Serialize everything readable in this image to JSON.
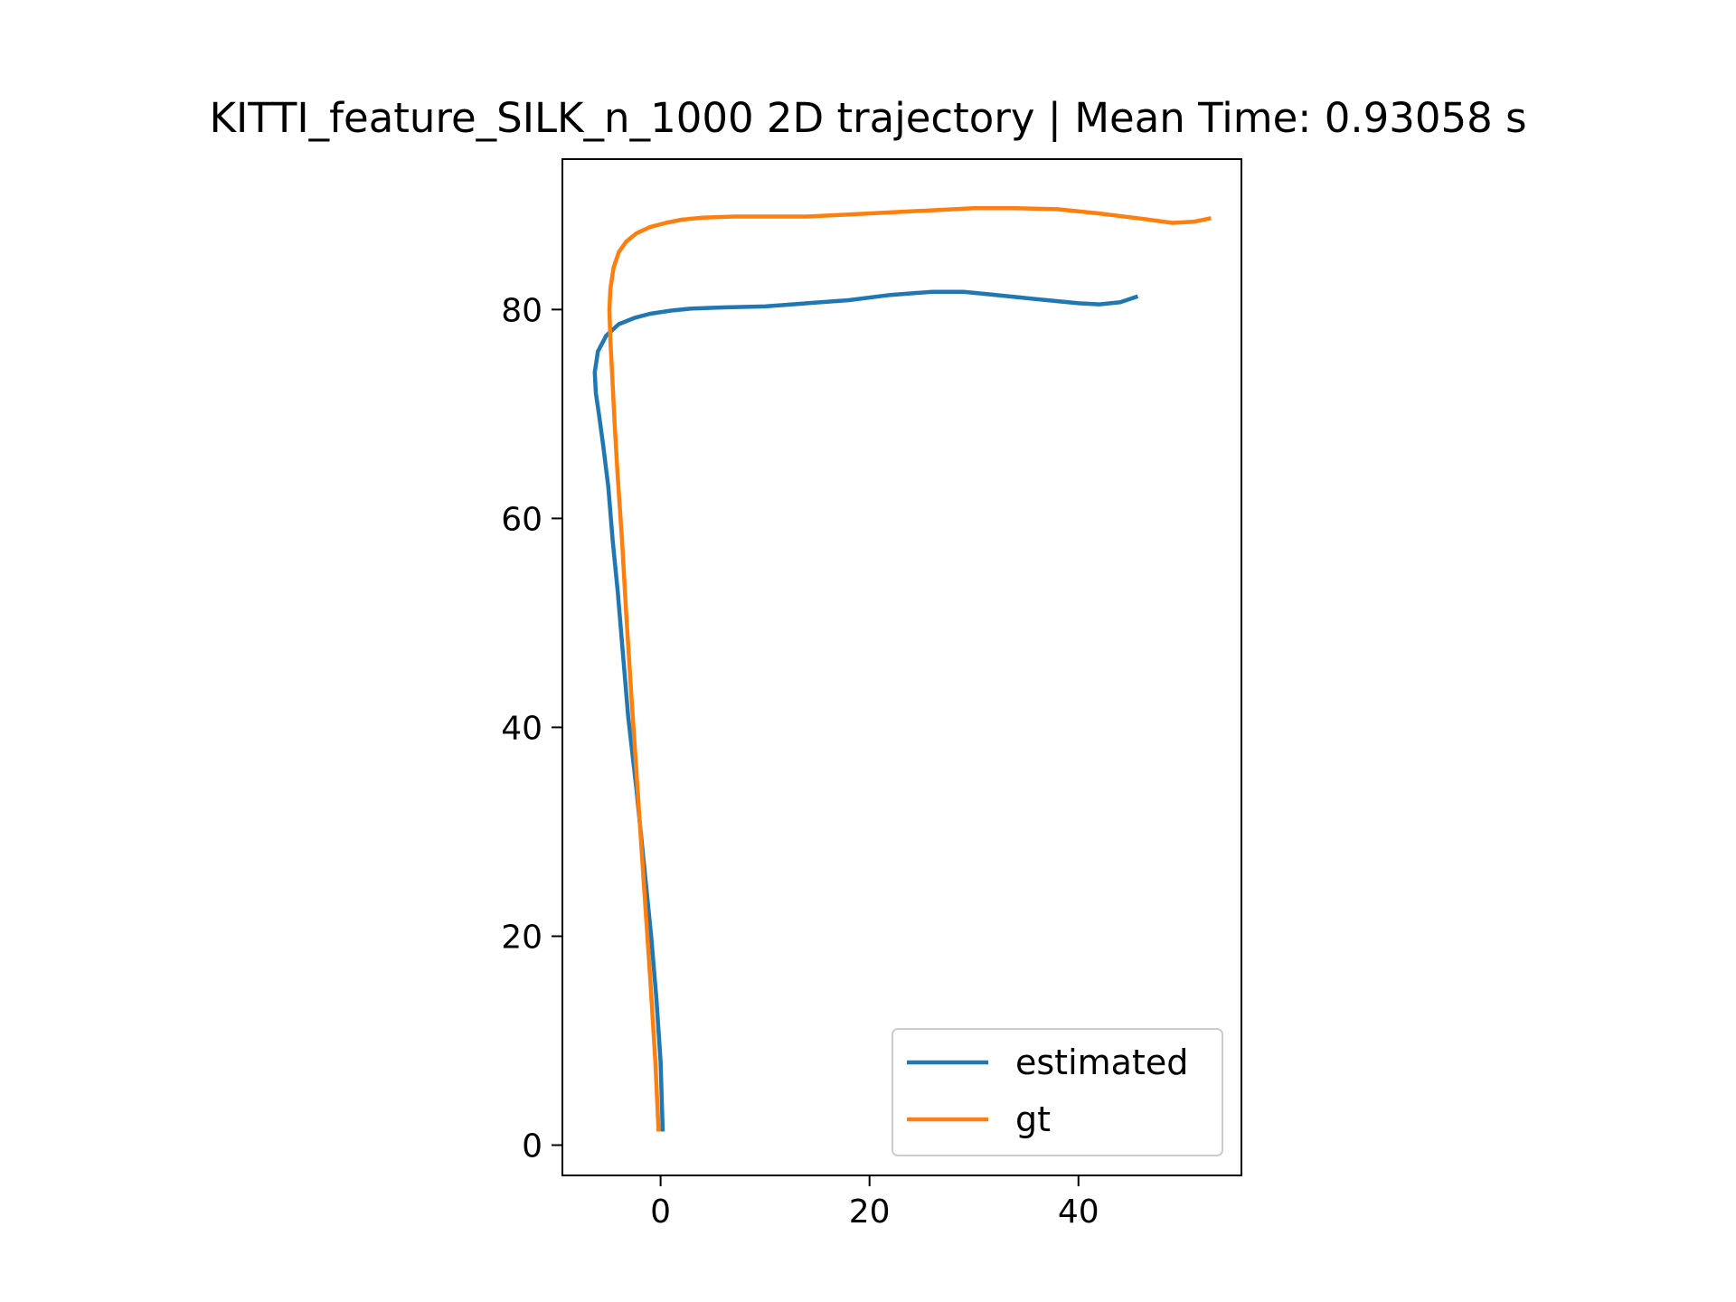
{
  "chart_data": {
    "type": "line",
    "title": "KITTI_feature_SILK_n_1000 2D trajectory | Mean Time: 0.93058 s",
    "xlabel": "",
    "ylabel": "",
    "xlim": [
      -9.4,
      55.6
    ],
    "ylim": [
      -2.9,
      94.4
    ],
    "xticks": [
      0,
      20,
      40
    ],
    "yticks": [
      0,
      20,
      40,
      60,
      80
    ],
    "grid": false,
    "legend_position": "lower right",
    "series": [
      {
        "name": "estimated",
        "color": "#1f77b4",
        "x": [
          0.2,
          0.0,
          -0.4,
          -0.9,
          -1.6,
          -2.3,
          -3.1,
          -3.6,
          -4.1,
          -4.6,
          -5.0,
          -5.5,
          -5.9,
          -6.2,
          -6.3,
          -6.0,
          -5.2,
          -4.0,
          -2.5,
          -1.0,
          1.0,
          3.0,
          6.0,
          10.0,
          14.0,
          18.0,
          22.0,
          26.0,
          29.0,
          31.0,
          34.0,
          37.0,
          40.0,
          42.0,
          44.0,
          45.5
        ],
        "y": [
          1.5,
          8.0,
          14.0,
          20.0,
          27.0,
          34.0,
          41.0,
          47.0,
          53.0,
          58.0,
          63.0,
          67.0,
          70.0,
          72.0,
          74.0,
          76.0,
          77.5,
          78.6,
          79.2,
          79.6,
          79.9,
          80.1,
          80.2,
          80.3,
          80.6,
          80.9,
          81.4,
          81.7,
          81.7,
          81.5,
          81.2,
          80.9,
          80.6,
          80.5,
          80.7,
          81.2
        ]
      },
      {
        "name": "gt",
        "color": "#ff7f0e",
        "x": [
          -0.2,
          -0.5,
          -1.0,
          -1.6,
          -2.2,
          -2.8,
          -3.3,
          -3.7,
          -4.1,
          -4.4,
          -4.6,
          -4.8,
          -4.9,
          -4.8,
          -4.5,
          -4.0,
          -3.3,
          -2.3,
          -1.0,
          0.5,
          2.0,
          4.0,
          7.0,
          10.0,
          14.0,
          18.0,
          22.0,
          26.0,
          30.0,
          34.0,
          38.0,
          42.0,
          46.0,
          49.0,
          51.0,
          52.5
        ],
        "y": [
          1.5,
          8.0,
          16.0,
          25.0,
          34.0,
          43.0,
          51.0,
          58.0,
          64.0,
          69.0,
          73.0,
          77.0,
          80.0,
          82.0,
          84.0,
          85.5,
          86.5,
          87.3,
          87.9,
          88.3,
          88.6,
          88.8,
          88.9,
          88.9,
          88.9,
          89.1,
          89.3,
          89.5,
          89.7,
          89.7,
          89.6,
          89.2,
          88.7,
          88.3,
          88.4,
          88.7
        ]
      }
    ]
  }
}
